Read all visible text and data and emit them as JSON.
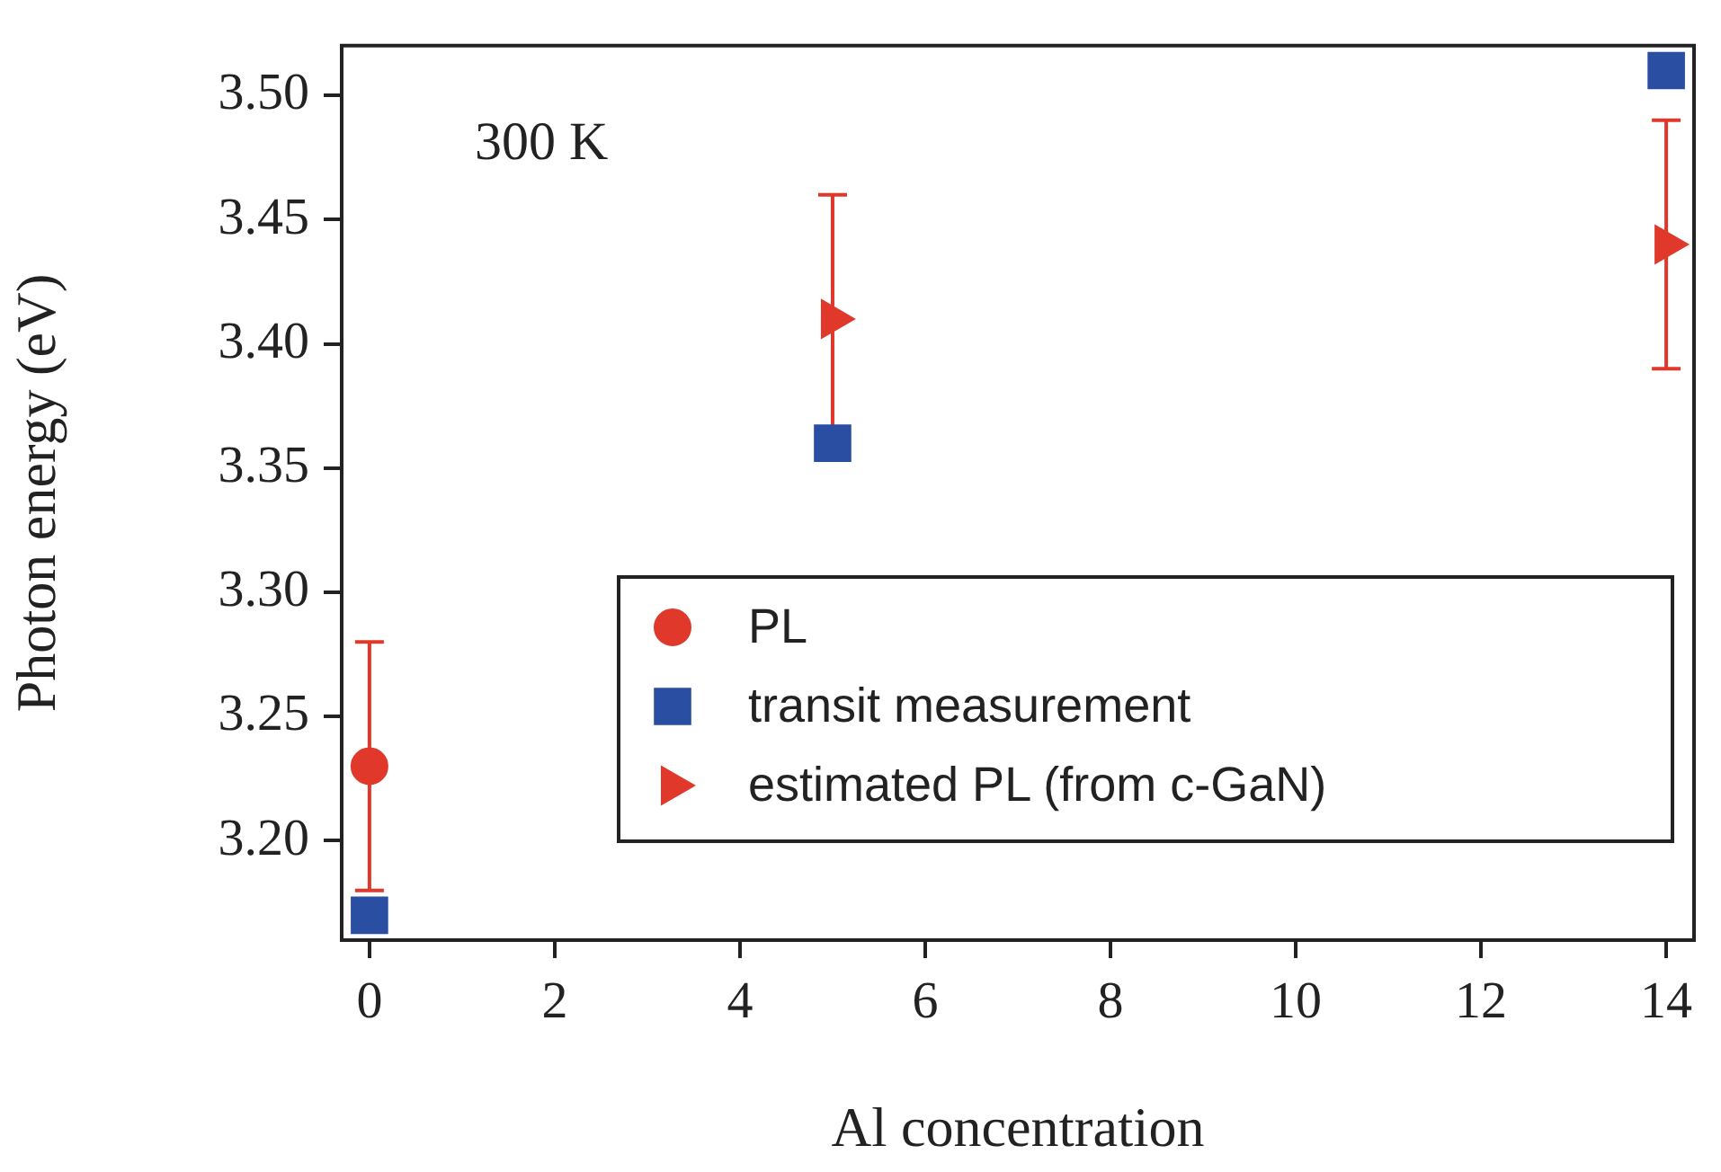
{
  "chart_data": {
    "type": "scatter",
    "xlabel": "Al concentration",
    "ylabel": "Photon energy (eV)",
    "annotations": [
      "300 K"
    ],
    "xlim": [
      -0.3,
      14.3
    ],
    "xticks": [
      0,
      2,
      4,
      6,
      8,
      10,
      12,
      14
    ],
    "ylim": [
      3.16,
      3.52
    ],
    "yticks": [
      {
        "value": 3.2,
        "label": "3.20"
      },
      {
        "value": 3.25,
        "label": "3.25"
      },
      {
        "value": 3.3,
        "label": "3.30"
      },
      {
        "value": 3.35,
        "label": "3.35"
      },
      {
        "value": 3.4,
        "label": "3.40"
      },
      {
        "value": 3.45,
        "label": "3.45"
      },
      {
        "value": 3.5,
        "label": "3.50"
      }
    ],
    "grid": false,
    "legend": "bottom right",
    "series": [
      {
        "name": "PL",
        "color": "#e0392b",
        "marker": "circle",
        "x": [
          0
        ],
        "values": [
          3.23
        ],
        "errors": [
          0.05
        ]
      },
      {
        "name": "transit measurement",
        "color": "#2a4ea2",
        "marker": "square",
        "x": [
          0,
          5,
          14
        ],
        "values": [
          3.17,
          3.36,
          3.51
        ]
      },
      {
        "name": "estimated PL (from c-GaN)",
        "color": "#e0392b",
        "marker": "triangle",
        "x": [
          5,
          14
        ],
        "values": [
          3.41,
          3.44
        ],
        "errors": [
          0.05,
          0.05
        ]
      }
    ]
  }
}
